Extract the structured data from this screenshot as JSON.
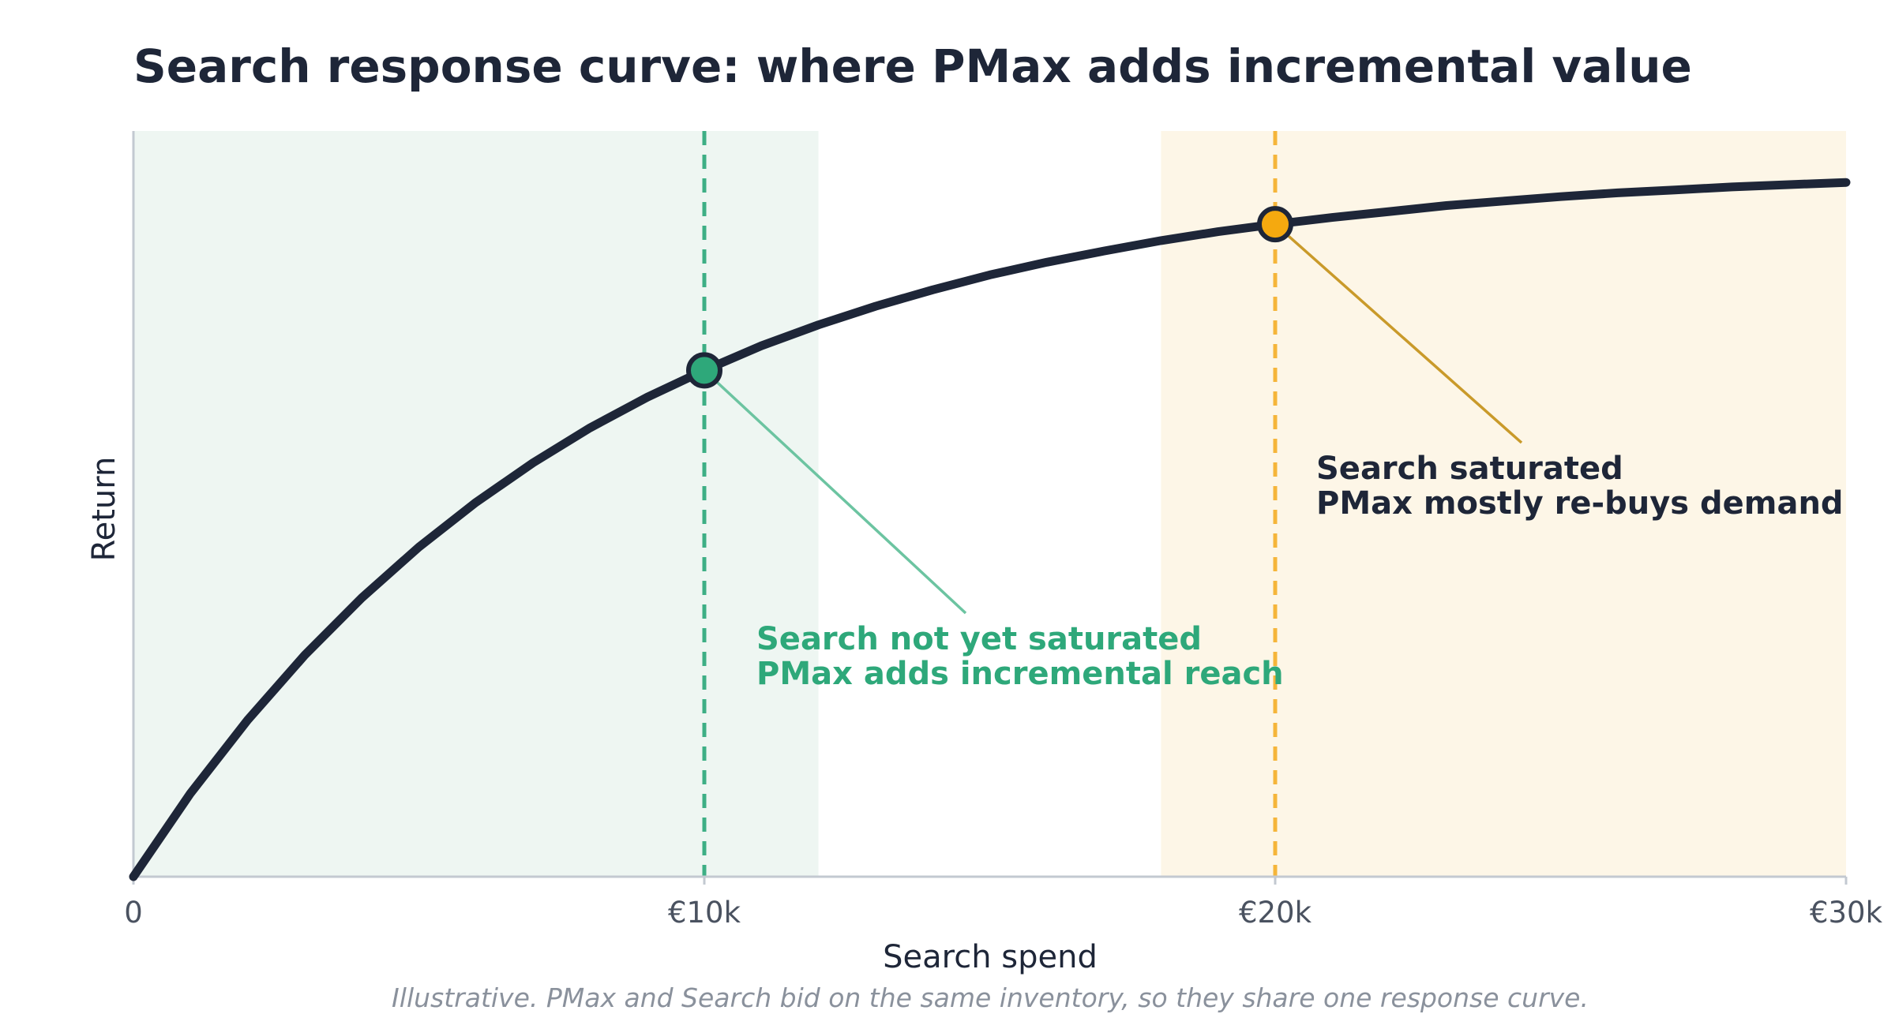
{
  "chart_data": {
    "type": "line",
    "title": "Search response curve: where PMax adds incremental value",
    "x_label": "Search spend",
    "y_label": "Return",
    "note": "Illustrative. PMax and Search bid on the same inventory, so they share one response curve.",
    "xlim": [
      0,
      30000
    ],
    "ylim": [
      0,
      100
    ],
    "xticks": [
      0,
      {
        "value": 10000,
        "label": "€10k"
      },
      {
        "value": 20000,
        "label": "€20k"
      },
      {
        "value": 30000,
        "label": "€30k"
      }
    ],
    "x": [
      0,
      1000,
      2000,
      3000,
      4000,
      5000,
      6000,
      7000,
      8000,
      9000,
      10000,
      11000,
      12000,
      13000,
      14000,
      15000,
      16000,
      17000,
      18000,
      19000,
      20000,
      21000,
      22000,
      23000,
      24000,
      25000,
      26000,
      27000,
      28000,
      29000,
      30000
    ],
    "values": [
      0,
      11.2,
      21.0,
      29.7,
      37.4,
      44.2,
      50.2,
      55.5,
      60.2,
      64.3,
      67.9,
      71.2,
      74.0,
      76.5,
      78.7,
      80.7,
      82.4,
      83.9,
      85.3,
      86.5,
      87.5,
      88.4,
      89.2,
      90.0,
      90.6,
      91.2,
      91.7,
      92.1,
      92.5,
      92.8,
      93.1
    ],
    "color": "#1e2638",
    "regions": [
      {
        "from": 0,
        "to": 12000,
        "color": "#eef6f2"
      },
      {
        "from": 18000,
        "to": 30000,
        "color": "#fdf6e7"
      }
    ],
    "markers": [
      {
        "x": 10000,
        "y": 67.9,
        "color": "#2ea87a",
        "line_color": "#3daf85",
        "leader_color": "#6cc4a1",
        "label_color": "#2ea87a",
        "label": [
          "Search not yet saturated",
          "PMax adds incremental reach"
        ]
      },
      {
        "x": 20000,
        "y": 87.5,
        "color": "#f5a90f",
        "line_color": "#f5b53a",
        "leader_color": "#c99a2a",
        "label_color": "#1e2638",
        "label": [
          "Search saturated",
          "PMax mostly re-buys demand"
        ]
      }
    ]
  }
}
